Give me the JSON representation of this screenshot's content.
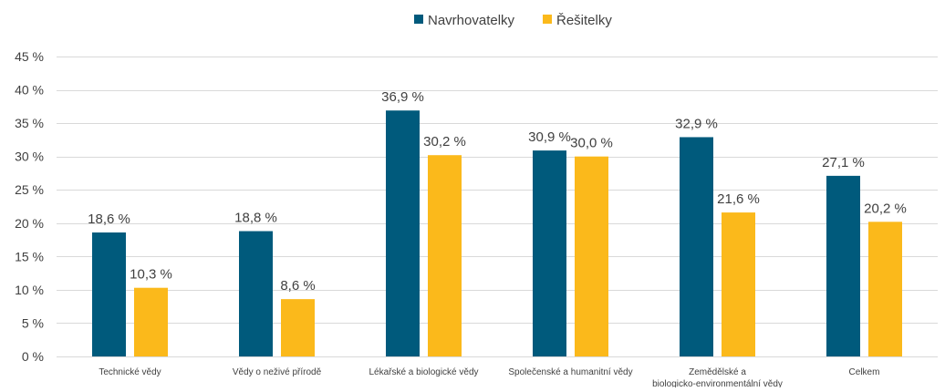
{
  "chart_data": {
    "type": "bar",
    "title": "",
    "xlabel": "",
    "ylabel": "",
    "ylim": [
      0,
      45
    ],
    "yticks": [
      0,
      5,
      10,
      15,
      20,
      25,
      30,
      35,
      40,
      45
    ],
    "ytick_suffix": " %",
    "grid": true,
    "legend_position": "top-center",
    "categories": [
      "Technické vědy",
      "Vědy o neživé přírodě",
      "Lékařské a biologické vědy",
      "Společenské a humanitní vědy",
      "Zemědělské a biologicko-environmentální vědy",
      "Celkem"
    ],
    "series": [
      {
        "name": "Navrhovatelky",
        "color": "#005a7c",
        "values": [
          18.6,
          18.8,
          36.9,
          30.9,
          32.9,
          27.1
        ],
        "labels": [
          "18,6 %",
          "18,8 %",
          "36,9 %",
          "30,9 %",
          "32,9 %",
          "27,1 %"
        ]
      },
      {
        "name": "Řešitelky",
        "color": "#fbb91b",
        "values": [
          10.3,
          8.6,
          30.2,
          30.0,
          21.6,
          20.2
        ],
        "labels": [
          "10,3 %",
          "8,6 %",
          "30,2 %",
          "30,0 %",
          "21,6 %",
          "20,2 %"
        ]
      }
    ]
  },
  "colors": {
    "grid": "#d9d9d9",
    "axis_text": "#404040"
  }
}
